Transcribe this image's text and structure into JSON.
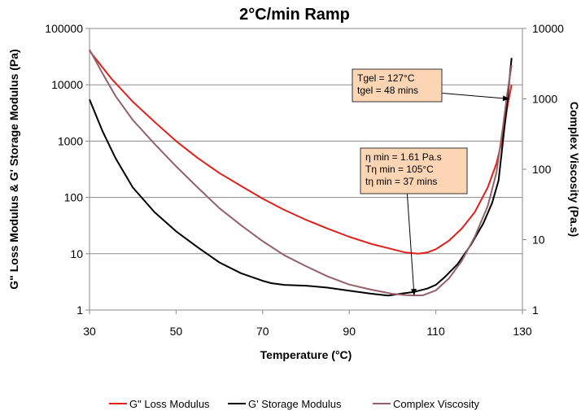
{
  "chart_data": {
    "type": "line",
    "title": "2°C/min Ramp",
    "xlabel": "Temperature (°C)",
    "ylabel_left": "G\" Loss Modulus & G' Storage Modulus (Pa)",
    "ylabel_right": "Complex Viscosity (Pa.s)",
    "xlim": [
      30,
      130
    ],
    "ylim_left": [
      1,
      100000
    ],
    "ylim_right": [
      1,
      10000
    ],
    "yscale": "log",
    "x_ticks": [
      "30",
      "50",
      "70",
      "90",
      "110",
      "130"
    ],
    "y_left_ticks": [
      "1",
      "10",
      "100",
      "1000",
      "10000",
      "100000"
    ],
    "y_right_ticks": [
      "1",
      "10",
      "100",
      "1000",
      "10000"
    ],
    "grid": "horizontal",
    "legend_position": "bottom",
    "series": [
      {
        "name": "G\" Loss Modulus",
        "axis": "left",
        "color": "#e0201b",
        "points": [
          [
            30,
            40000
          ],
          [
            35,
            13000
          ],
          [
            40,
            5000
          ],
          [
            45,
            2200
          ],
          [
            50,
            1000
          ],
          [
            55,
            500
          ],
          [
            60,
            270
          ],
          [
            65,
            160
          ],
          [
            70,
            95
          ],
          [
            75,
            60
          ],
          [
            80,
            40
          ],
          [
            85,
            28
          ],
          [
            90,
            20
          ],
          [
            95,
            15
          ],
          [
            100,
            12
          ],
          [
            103,
            10.5
          ],
          [
            106,
            10
          ],
          [
            108,
            10.5
          ],
          [
            110,
            12
          ],
          [
            113,
            17
          ],
          [
            116,
            28
          ],
          [
            119,
            55
          ],
          [
            122,
            150
          ],
          [
            124,
            400
          ],
          [
            125.5,
            1200
          ],
          [
            126.5,
            4000
          ],
          [
            127.5,
            10000
          ]
        ]
      },
      {
        "name": "G' Storage Modulus",
        "axis": "left",
        "color": "#000000",
        "points": [
          [
            30,
            5500
          ],
          [
            33,
            1500
          ],
          [
            36,
            500
          ],
          [
            40,
            150
          ],
          [
            45,
            55
          ],
          [
            50,
            25
          ],
          [
            55,
            13
          ],
          [
            60,
            7
          ],
          [
            65,
            4.5
          ],
          [
            70,
            3.3
          ],
          [
            72,
            3
          ],
          [
            75,
            2.8
          ],
          [
            80,
            2.7
          ],
          [
            85,
            2.5
          ],
          [
            90,
            2.2
          ],
          [
            95,
            1.95
          ],
          [
            99,
            1.8
          ],
          [
            102,
            1.95
          ],
          [
            105,
            2.1
          ],
          [
            108,
            2.4
          ],
          [
            110,
            2.8
          ],
          [
            112,
            3.8
          ],
          [
            115,
            6.5
          ],
          [
            118,
            14
          ],
          [
            121,
            35
          ],
          [
            123,
            80
          ],
          [
            124.5,
            200
          ],
          [
            125.5,
            1000
          ],
          [
            126.5,
            5000
          ],
          [
            127.5,
            30000
          ]
        ]
      },
      {
        "name": "Complex Viscosity",
        "axis": "right",
        "color": "#94616b",
        "points": [
          [
            30,
            5000
          ],
          [
            33,
            2300
          ],
          [
            36,
            1100
          ],
          [
            40,
            500
          ],
          [
            45,
            230
          ],
          [
            50,
            110
          ],
          [
            55,
            55
          ],
          [
            60,
            28
          ],
          [
            65,
            16
          ],
          [
            70,
            9.5
          ],
          [
            75,
            6
          ],
          [
            80,
            4.2
          ],
          [
            85,
            3
          ],
          [
            90,
            2.3
          ],
          [
            95,
            1.95
          ],
          [
            100,
            1.7
          ],
          [
            103,
            1.63
          ],
          [
            105,
            1.61
          ],
          [
            107,
            1.62
          ],
          [
            110,
            1.9
          ],
          [
            113,
            2.8
          ],
          [
            116,
            5
          ],
          [
            119,
            11
          ],
          [
            122,
            30
          ],
          [
            124,
            90
          ],
          [
            125.5,
            400
          ],
          [
            126.5,
            1200
          ],
          [
            127.5,
            3000
          ]
        ]
      }
    ],
    "annotations": [
      {
        "lines": [
          "Tgel = 127°C",
          "tgel =  48 mins"
        ],
        "arrow_to": [
          127,
          1000
        ],
        "axis": "right"
      },
      {
        "lines": [
          "η min =  1.61 Pa.s",
          "Tη min = 105°C",
          "tη min =  37 mins"
        ],
        "arrow_to": [
          105,
          1.61
        ],
        "axis": "right"
      }
    ]
  }
}
